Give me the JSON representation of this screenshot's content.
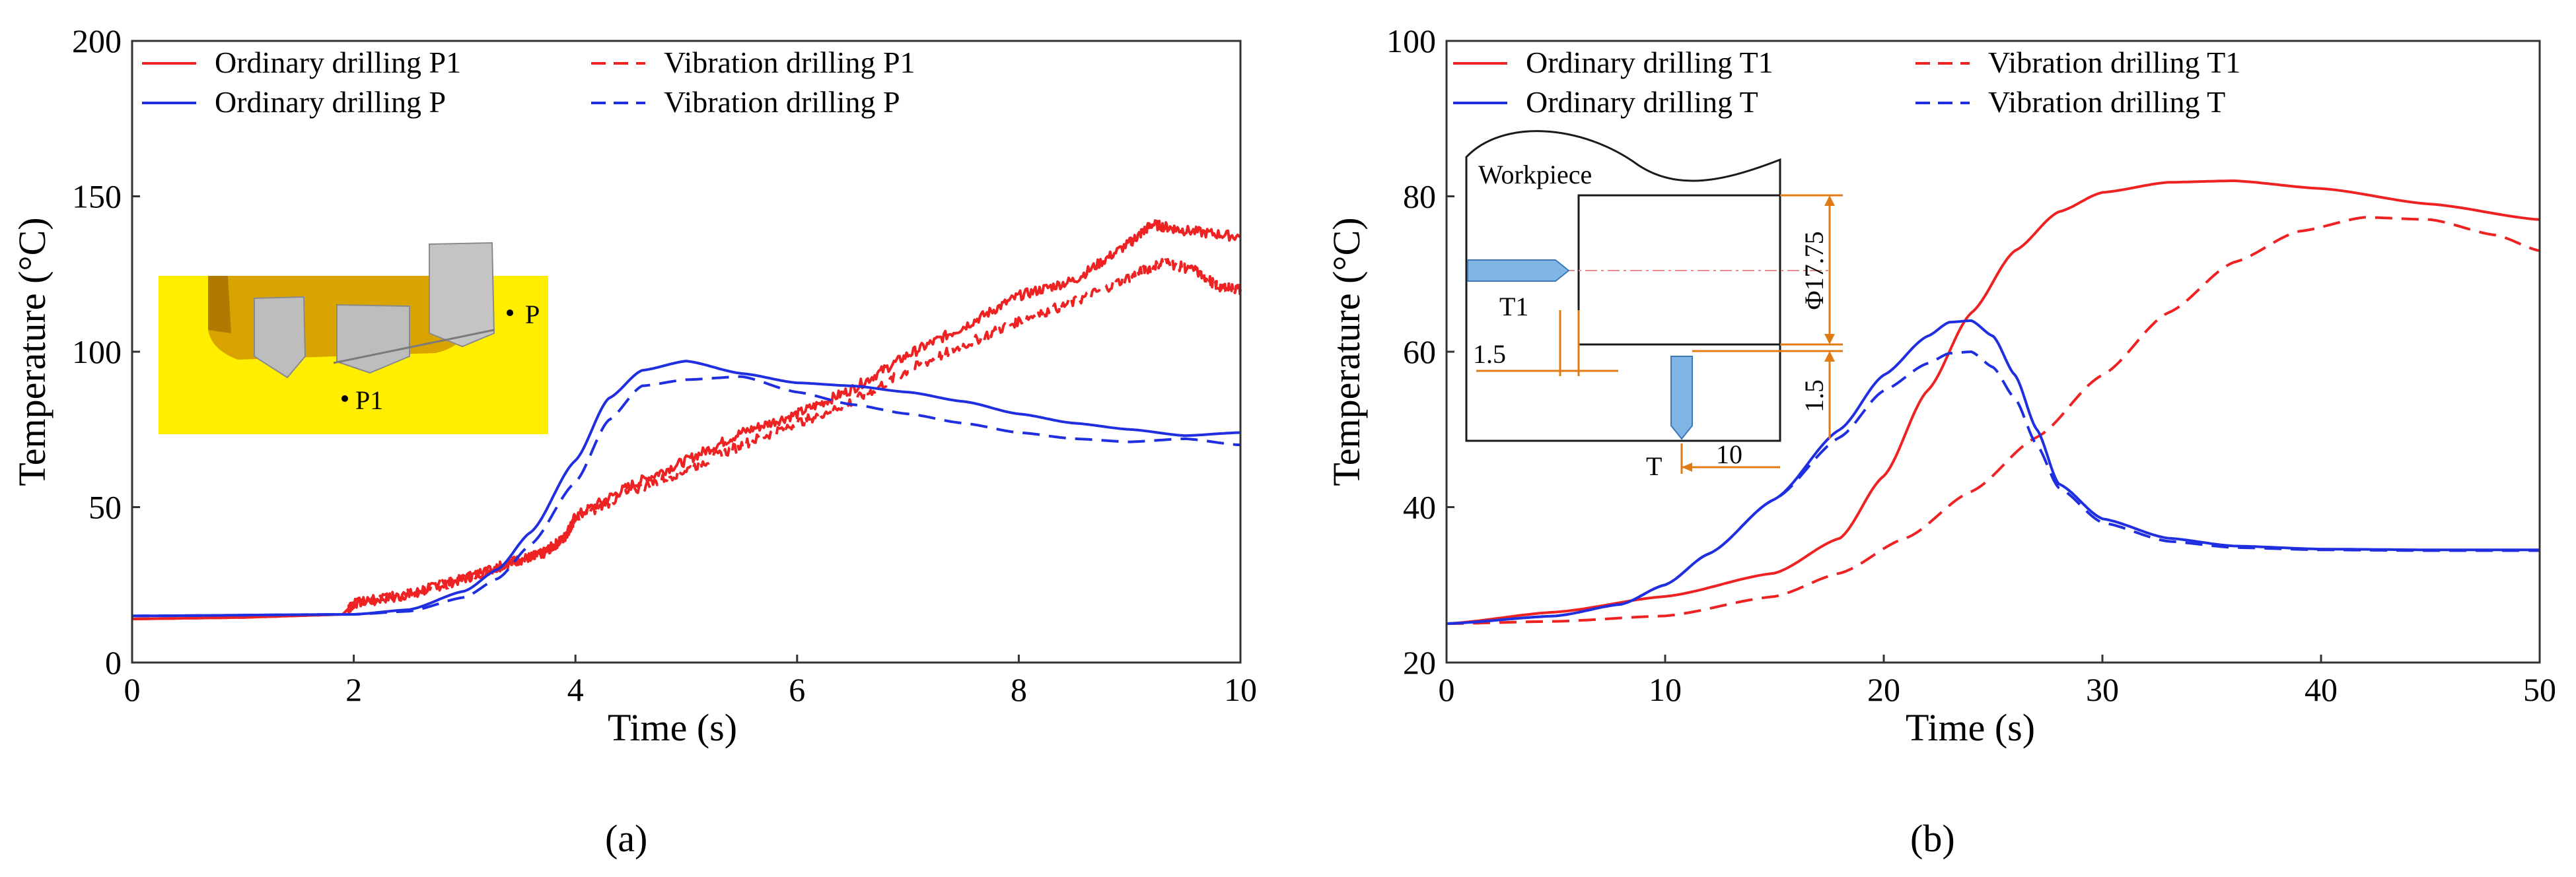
{
  "colors": {
    "red": "#ee2222",
    "blue": "#1f2fe0",
    "inset_yellow": "#ffee00",
    "dim_orange": "#e07a12",
    "probe_blue": "#7fb6e6"
  },
  "chart_data": [
    {
      "type": "line",
      "title": "",
      "xlabel": "Time (s)",
      "ylabel": "Temperature (°C)",
      "xlim": [
        0,
        10
      ],
      "ylim": [
        0,
        200
      ],
      "xticks": [
        0,
        2,
        4,
        6,
        8,
        10
      ],
      "yticks": [
        0,
        50,
        100,
        150,
        200
      ],
      "caption": "(a)",
      "legend_position": "top",
      "series": [
        {
          "name": "Ordinary drilling P1",
          "color": "#ee2222",
          "dash": false,
          "noise": true,
          "x": [
            0,
            1,
            1.9,
            2.0,
            2.5,
            3.0,
            3.4,
            3.7,
            3.9,
            4.0,
            4.5,
            5.0,
            5.5,
            6.0,
            6.5,
            7.0,
            7.5,
            8.0,
            8.5,
            9.0,
            9.2,
            9.5,
            10.0
          ],
          "y": [
            14,
            14.5,
            15.5,
            19,
            22,
            27,
            32,
            35,
            40,
            47,
            57,
            65,
            74,
            80,
            88,
            99,
            108,
            118,
            123,
            135,
            141,
            139,
            137
          ]
        },
        {
          "name": "Vibration drilling P1",
          "color": "#ee2222",
          "dash": true,
          "noise": true,
          "x": [
            0,
            1,
            1.9,
            2.0,
            2.5,
            3.0,
            3.4,
            3.7,
            3.9,
            4.0,
            4.5,
            5.0,
            5.5,
            6.0,
            6.5,
            7.0,
            7.5,
            8.0,
            8.5,
            9.0,
            9.3,
            9.6,
            9.8,
            10.0
          ],
          "y": [
            14,
            14.5,
            15.5,
            19,
            22,
            27,
            32,
            35,
            40,
            46,
            55,
            62,
            70,
            77,
            84,
            94,
            102,
            110,
            116,
            124,
            129,
            126,
            121,
            120
          ]
        },
        {
          "name": "Ordinary drilling P",
          "color": "#1f2fe0",
          "dash": false,
          "noise": false,
          "x": [
            0,
            2.0,
            2.5,
            3.0,
            3.3,
            3.6,
            4.0,
            4.3,
            4.6,
            5.0,
            5.5,
            6.0,
            6.5,
            7.0,
            7.5,
            8.0,
            8.5,
            9.0,
            9.5,
            10.0
          ],
          "y": [
            15,
            15.5,
            17,
            23,
            30,
            42,
            65,
            85,
            94,
            97,
            93,
            90,
            89,
            87,
            84,
            80,
            77,
            75,
            73,
            74
          ]
        },
        {
          "name": "Vibration drilling P",
          "color": "#1f2fe0",
          "dash": true,
          "noise": false,
          "x": [
            0,
            2.0,
            2.5,
            3.0,
            3.3,
            3.6,
            4.0,
            4.3,
            4.6,
            5.0,
            5.5,
            6.0,
            6.5,
            7.0,
            7.5,
            8.0,
            8.5,
            9.0,
            9.5,
            10.0
          ],
          "y": [
            15,
            15.5,
            16.5,
            21,
            27,
            38,
            58,
            78,
            89,
            91,
            92,
            87,
            83,
            80,
            77,
            74,
            72,
            71,
            72,
            70
          ]
        }
      ],
      "inset": {
        "point_labels": [
          "P",
          "P1"
        ]
      }
    },
    {
      "type": "line",
      "title": "",
      "xlabel": "Time (s)",
      "ylabel": "Temperature (°C)",
      "xlim": [
        0,
        50
      ],
      "ylim": [
        20,
        100
      ],
      "xticks": [
        0,
        10,
        20,
        30,
        40,
        50
      ],
      "yticks": [
        20,
        40,
        60,
        80,
        100
      ],
      "caption": "(b)",
      "legend_position": "top",
      "series": [
        {
          "name": "Ordinary drilling T1",
          "color": "#ee2222",
          "dash": false,
          "noise": false,
          "x": [
            0,
            5,
            10,
            15,
            18,
            20,
            22,
            24,
            26,
            28,
            30,
            33,
            36,
            40,
            45,
            50
          ],
          "y": [
            25,
            26.5,
            28.5,
            31.5,
            36,
            44,
            55,
            65,
            73,
            78,
            80.5,
            81.8,
            82,
            81,
            79,
            77
          ]
        },
        {
          "name": "Vibration drilling T1",
          "color": "#ee2222",
          "dash": true,
          "noise": false,
          "x": [
            0,
            5,
            10,
            15,
            18,
            21,
            24,
            27,
            30,
            33,
            36,
            39,
            42,
            45,
            48,
            50
          ],
          "y": [
            25,
            25.3,
            26,
            28.5,
            31.5,
            36,
            42,
            49,
            57,
            65,
            71.5,
            75.5,
            77.3,
            77,
            75,
            73
          ]
        },
        {
          "name": "Ordinary drilling T",
          "color": "#1f2fe0",
          "dash": false,
          "noise": false,
          "x": [
            0,
            5,
            8,
            10,
            12,
            15,
            18,
            20,
            22,
            23,
            24,
            25,
            26,
            27,
            28,
            30,
            33,
            36,
            40,
            45,
            50
          ],
          "y": [
            25,
            26,
            27.5,
            30,
            34,
            41,
            50,
            57,
            62,
            63.8,
            64,
            62,
            57,
            50,
            43,
            38.5,
            36,
            35,
            34.6,
            34.5,
            34.5
          ]
        },
        {
          "name": "Vibration drilling T",
          "color": "#1f2fe0",
          "dash": true,
          "noise": false,
          "x": [
            0,
            5,
            8,
            10,
            12,
            15,
            18,
            20,
            22,
            23,
            24,
            25,
            26,
            27,
            28,
            30,
            33,
            36,
            40,
            45,
            50
          ],
          "y": [
            25,
            26,
            27.5,
            30,
            34,
            41,
            49,
            55,
            58.5,
            59.8,
            60,
            58,
            54,
            48,
            42.5,
            38,
            35.6,
            34.8,
            34.5,
            34.4,
            34.4
          ]
        }
      ],
      "inset": {
        "workpiece_label": "Workpiece",
        "t1_label": "T1",
        "t_label": "T",
        "dim_diameter": "Φ17.75",
        "dim_left": "1.5",
        "dim_vertical": "1.5",
        "dim_bottom": "10"
      }
    }
  ]
}
